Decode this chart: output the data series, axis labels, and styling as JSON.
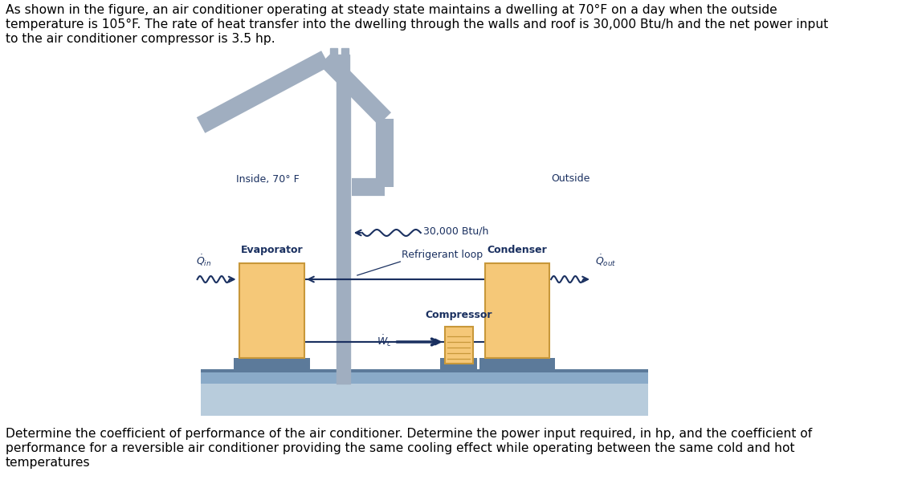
{
  "top_text_line1": "As shown in the figure, an air conditioner operating at steady state maintains a dwelling at 70°F on a day when the outside",
  "top_text_line2": "temperature is 105°F. The rate of heat transfer into the dwelling through the walls and roof is 30,000 Btu/h and the net power input",
  "top_text_line3": "to the air conditioner compressor is 3.5 hp.",
  "bottom_text_line1": "Determine the coefficient of performance of the air conditioner. Determine the power input required, in hp, and the coefficient of",
  "bottom_text_line2": "performance for a reversible air conditioner providing the same cooling effect while operating between the same cold and hot",
  "bottom_text_line3": "temperatures",
  "label_inside": "Inside, 70° F",
  "label_outside": "Outside",
  "label_30000": "30,000 Btu/h",
  "label_refrig": "Refrigerant loop",
  "label_evap": "Evaporator",
  "label_cond": "Condenser",
  "label_comp": "Compressor",
  "house_color": "#a0aec0",
  "box_fill": "#f5c878",
  "box_edge": "#c8983a",
  "ground_dark": "#5c7a9a",
  "ground_light": "#8aaac8",
  "arrow_color": "#1a3060",
  "text_color": "#1a3060",
  "font_size_main": 11.2,
  "font_size_label": 9.0,
  "font_size_small": 8.5
}
